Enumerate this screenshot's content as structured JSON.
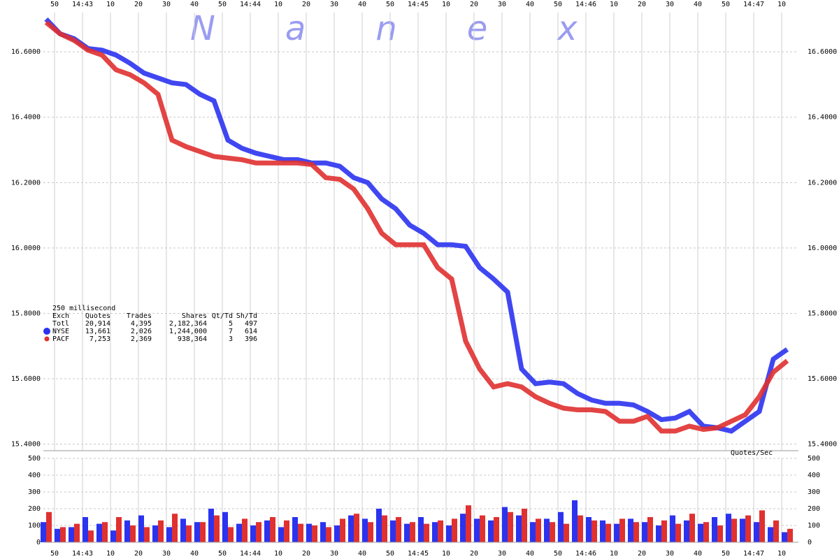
{
  "chart_data": [
    {
      "type": "line",
      "watermark": "Nanex",
      "x": [
        "14:42:47",
        "14:42:52",
        "14:42:57",
        "14:43:02",
        "14:43:07",
        "14:43:12",
        "14:43:17",
        "14:43:22",
        "14:43:27",
        "14:43:32",
        "14:43:37",
        "14:43:42",
        "14:43:47",
        "14:43:52",
        "14:43:57",
        "14:44:02",
        "14:44:07",
        "14:44:12",
        "14:44:17",
        "14:44:22",
        "14:44:27",
        "14:44:32",
        "14:44:37",
        "14:44:42",
        "14:44:47",
        "14:44:52",
        "14:44:57",
        "14:45:02",
        "14:45:07",
        "14:45:12",
        "14:45:17",
        "14:45:22",
        "14:45:27",
        "14:45:32",
        "14:45:37",
        "14:45:42",
        "14:45:47",
        "14:45:52",
        "14:45:57",
        "14:46:02",
        "14:46:07",
        "14:46:12",
        "14:46:17",
        "14:46:22",
        "14:46:27",
        "14:46:32",
        "14:46:37",
        "14:46:42",
        "14:46:47",
        "14:46:52",
        "14:46:57",
        "14:47:02",
        "14:47:07",
        "14:47:12"
      ],
      "xlim": [
        "14:42:46",
        "14:47:16"
      ],
      "xticks": [
        {
          "value": "14:42:50",
          "label": "50"
        },
        {
          "value": "14:43:00",
          "label": "14:43"
        },
        {
          "value": "14:43:10",
          "label": "10"
        },
        {
          "value": "14:43:20",
          "label": "20"
        },
        {
          "value": "14:43:30",
          "label": "30"
        },
        {
          "value": "14:43:40",
          "label": "40"
        },
        {
          "value": "14:43:50",
          "label": "50"
        },
        {
          "value": "14:44:00",
          "label": "14:44"
        },
        {
          "value": "14:44:10",
          "label": "10"
        },
        {
          "value": "14:44:20",
          "label": "20"
        },
        {
          "value": "14:44:30",
          "label": "30"
        },
        {
          "value": "14:44:40",
          "label": "40"
        },
        {
          "value": "14:44:50",
          "label": "50"
        },
        {
          "value": "14:45:00",
          "label": "14:45"
        },
        {
          "value": "14:45:10",
          "label": "10"
        },
        {
          "value": "14:45:20",
          "label": "20"
        },
        {
          "value": "14:45:30",
          "label": "30"
        },
        {
          "value": "14:45:40",
          "label": "40"
        },
        {
          "value": "14:45:50",
          "label": "50"
        },
        {
          "value": "14:46:00",
          "label": "14:46"
        },
        {
          "value": "14:46:10",
          "label": "10"
        },
        {
          "value": "14:46:20",
          "label": "20"
        },
        {
          "value": "14:46:30",
          "label": "30"
        },
        {
          "value": "14:46:40",
          "label": "40"
        },
        {
          "value": "14:46:50",
          "label": "50"
        },
        {
          "value": "14:47:00",
          "label": "14:47"
        },
        {
          "value": "14:47:10",
          "label": "10"
        }
      ],
      "ylim": [
        15.38,
        16.72
      ],
      "yticks": [
        {
          "value": 15.4,
          "label": "15.4000"
        },
        {
          "value": 15.6,
          "label": "15.6000"
        },
        {
          "value": 15.8,
          "label": "15.8000"
        },
        {
          "value": 16.0,
          "label": "16.0000"
        },
        {
          "value": 16.2,
          "label": "16.2000"
        },
        {
          "value": 16.4,
          "label": "16.4000"
        },
        {
          "value": 16.6,
          "label": "16.6000"
        }
      ],
      "grid": true,
      "stats": {
        "interval": "250 millisecond",
        "columns": [
          "Exch",
          "Quotes",
          "Trades",
          "Shares",
          "Qt/Td",
          "Sh/Td"
        ],
        "total": {
          "name": "Totl",
          "cells": [
            "20,914",
            "4,395",
            "2,182,364",
            "5",
            "497"
          ]
        }
      },
      "series": [
        {
          "name": "NYSE",
          "color": "#2b33f0",
          "stats": [
            "13,661",
            "2,026",
            "1,244,000",
            "7",
            "614"
          ],
          "values": [
            16.7,
            16.655,
            16.64,
            16.61,
            16.605,
            16.59,
            16.565,
            16.535,
            16.52,
            16.505,
            16.5,
            16.47,
            16.45,
            16.33,
            16.305,
            16.29,
            16.28,
            16.27,
            16.27,
            16.26,
            16.26,
            16.25,
            16.215,
            16.2,
            16.15,
            16.12,
            16.07,
            16.045,
            16.01,
            16.01,
            16.005,
            15.94,
            15.905,
            15.865,
            15.63,
            15.585,
            15.59,
            15.585,
            15.555,
            15.535,
            15.525,
            15.525,
            15.52,
            15.5,
            15.475,
            15.48,
            15.5,
            15.455,
            15.45,
            15.44,
            15.47,
            15.5,
            15.66,
            15.69
          ]
        },
        {
          "name": "PACF",
          "color": "#e03030",
          "stats": [
            "7,253",
            "2,369",
            "938,364",
            "3",
            "396"
          ],
          "values": [
            16.69,
            16.655,
            16.635,
            16.605,
            16.59,
            16.545,
            16.53,
            16.505,
            16.47,
            16.33,
            16.31,
            16.295,
            16.28,
            16.275,
            16.27,
            16.26,
            16.26,
            16.26,
            16.26,
            16.255,
            16.215,
            16.21,
            16.18,
            16.12,
            16.045,
            16.01,
            16.01,
            16.01,
            15.94,
            15.905,
            15.715,
            15.63,
            15.575,
            15.585,
            15.575,
            15.545,
            15.525,
            15.51,
            15.505,
            15.505,
            15.5,
            15.47,
            15.47,
            15.485,
            15.44,
            15.44,
            15.455,
            15.445,
            15.45,
            15.47,
            15.49,
            15.545,
            15.62,
            15.655
          ]
        }
      ]
    },
    {
      "type": "bar",
      "y_label": "Quotes/Sec",
      "x": [
        "14:42:47",
        "14:42:52",
        "14:42:57",
        "14:43:02",
        "14:43:07",
        "14:43:12",
        "14:43:17",
        "14:43:22",
        "14:43:27",
        "14:43:32",
        "14:43:37",
        "14:43:42",
        "14:43:47",
        "14:43:52",
        "14:43:57",
        "14:44:02",
        "14:44:07",
        "14:44:12",
        "14:44:17",
        "14:44:22",
        "14:44:27",
        "14:44:32",
        "14:44:37",
        "14:44:42",
        "14:44:47",
        "14:44:52",
        "14:44:57",
        "14:45:02",
        "14:45:07",
        "14:45:12",
        "14:45:17",
        "14:45:22",
        "14:45:27",
        "14:45:32",
        "14:45:37",
        "14:45:42",
        "14:45:47",
        "14:45:52",
        "14:45:57",
        "14:46:02",
        "14:46:07",
        "14:46:12",
        "14:46:17",
        "14:46:22",
        "14:46:27",
        "14:46:32",
        "14:46:37",
        "14:46:42",
        "14:46:47",
        "14:46:52",
        "14:46:57",
        "14:47:02",
        "14:47:07",
        "14:47:12"
      ],
      "xlim": [
        "14:42:46",
        "14:47:16"
      ],
      "xticks": [
        {
          "value": "14:42:50",
          "label": "50"
        },
        {
          "value": "14:43:00",
          "label": "14:43"
        },
        {
          "value": "14:43:10",
          "label": "10"
        },
        {
          "value": "14:43:20",
          "label": "20"
        },
        {
          "value": "14:43:30",
          "label": "30"
        },
        {
          "value": "14:43:40",
          "label": "40"
        },
        {
          "value": "14:43:50",
          "label": "50"
        },
        {
          "value": "14:44:00",
          "label": "14:44"
        },
        {
          "value": "14:44:10",
          "label": "10"
        },
        {
          "value": "14:44:20",
          "label": "20"
        },
        {
          "value": "14:44:30",
          "label": "30"
        },
        {
          "value": "14:44:40",
          "label": "40"
        },
        {
          "value": "14:44:50",
          "label": "50"
        },
        {
          "value": "14:45:00",
          "label": "14:45"
        },
        {
          "value": "14:45:10",
          "label": "10"
        },
        {
          "value": "14:45:20",
          "label": "20"
        },
        {
          "value": "14:45:30",
          "label": "30"
        },
        {
          "value": "14:45:40",
          "label": "40"
        },
        {
          "value": "14:45:50",
          "label": "50"
        },
        {
          "value": "14:46:00",
          "label": "14:46"
        },
        {
          "value": "14:46:10",
          "label": "10"
        },
        {
          "value": "14:46:20",
          "label": "20"
        },
        {
          "value": "14:46:30",
          "label": "30"
        },
        {
          "value": "14:46:40",
          "label": "40"
        },
        {
          "value": "14:46:50",
          "label": "50"
        },
        {
          "value": "14:47:00",
          "label": "14:47"
        },
        {
          "value": "14:47:10",
          "label": "10"
        }
      ],
      "ylim": [
        0,
        500
      ],
      "yticks": [
        0,
        100,
        200,
        300,
        400,
        500
      ],
      "grid": true,
      "series": [
        {
          "name": "NYSE",
          "color": "#2b33f0",
          "values": [
            120,
            80,
            90,
            150,
            110,
            70,
            130,
            160,
            100,
            90,
            140,
            120,
            200,
            180,
            110,
            100,
            130,
            90,
            150,
            110,
            120,
            100,
            160,
            140,
            200,
            130,
            110,
            150,
            120,
            100,
            170,
            140,
            130,
            210,
            160,
            120,
            140,
            180,
            250,
            150,
            130,
            110,
            140,
            120,
            100,
            160,
            130,
            110,
            150,
            170,
            140,
            120,
            90,
            60
          ]
        },
        {
          "name": "PACF",
          "color": "#e03030",
          "values": [
            180,
            90,
            110,
            70,
            120,
            150,
            100,
            90,
            130,
            170,
            100,
            120,
            160,
            90,
            140,
            120,
            150,
            130,
            110,
            100,
            90,
            140,
            170,
            120,
            160,
            150,
            120,
            110,
            130,
            140,
            220,
            160,
            150,
            180,
            200,
            140,
            120,
            110,
            160,
            130,
            110,
            140,
            120,
            150,
            130,
            110,
            170,
            120,
            100,
            140,
            160,
            190,
            130,
            80
          ]
        }
      ]
    }
  ]
}
